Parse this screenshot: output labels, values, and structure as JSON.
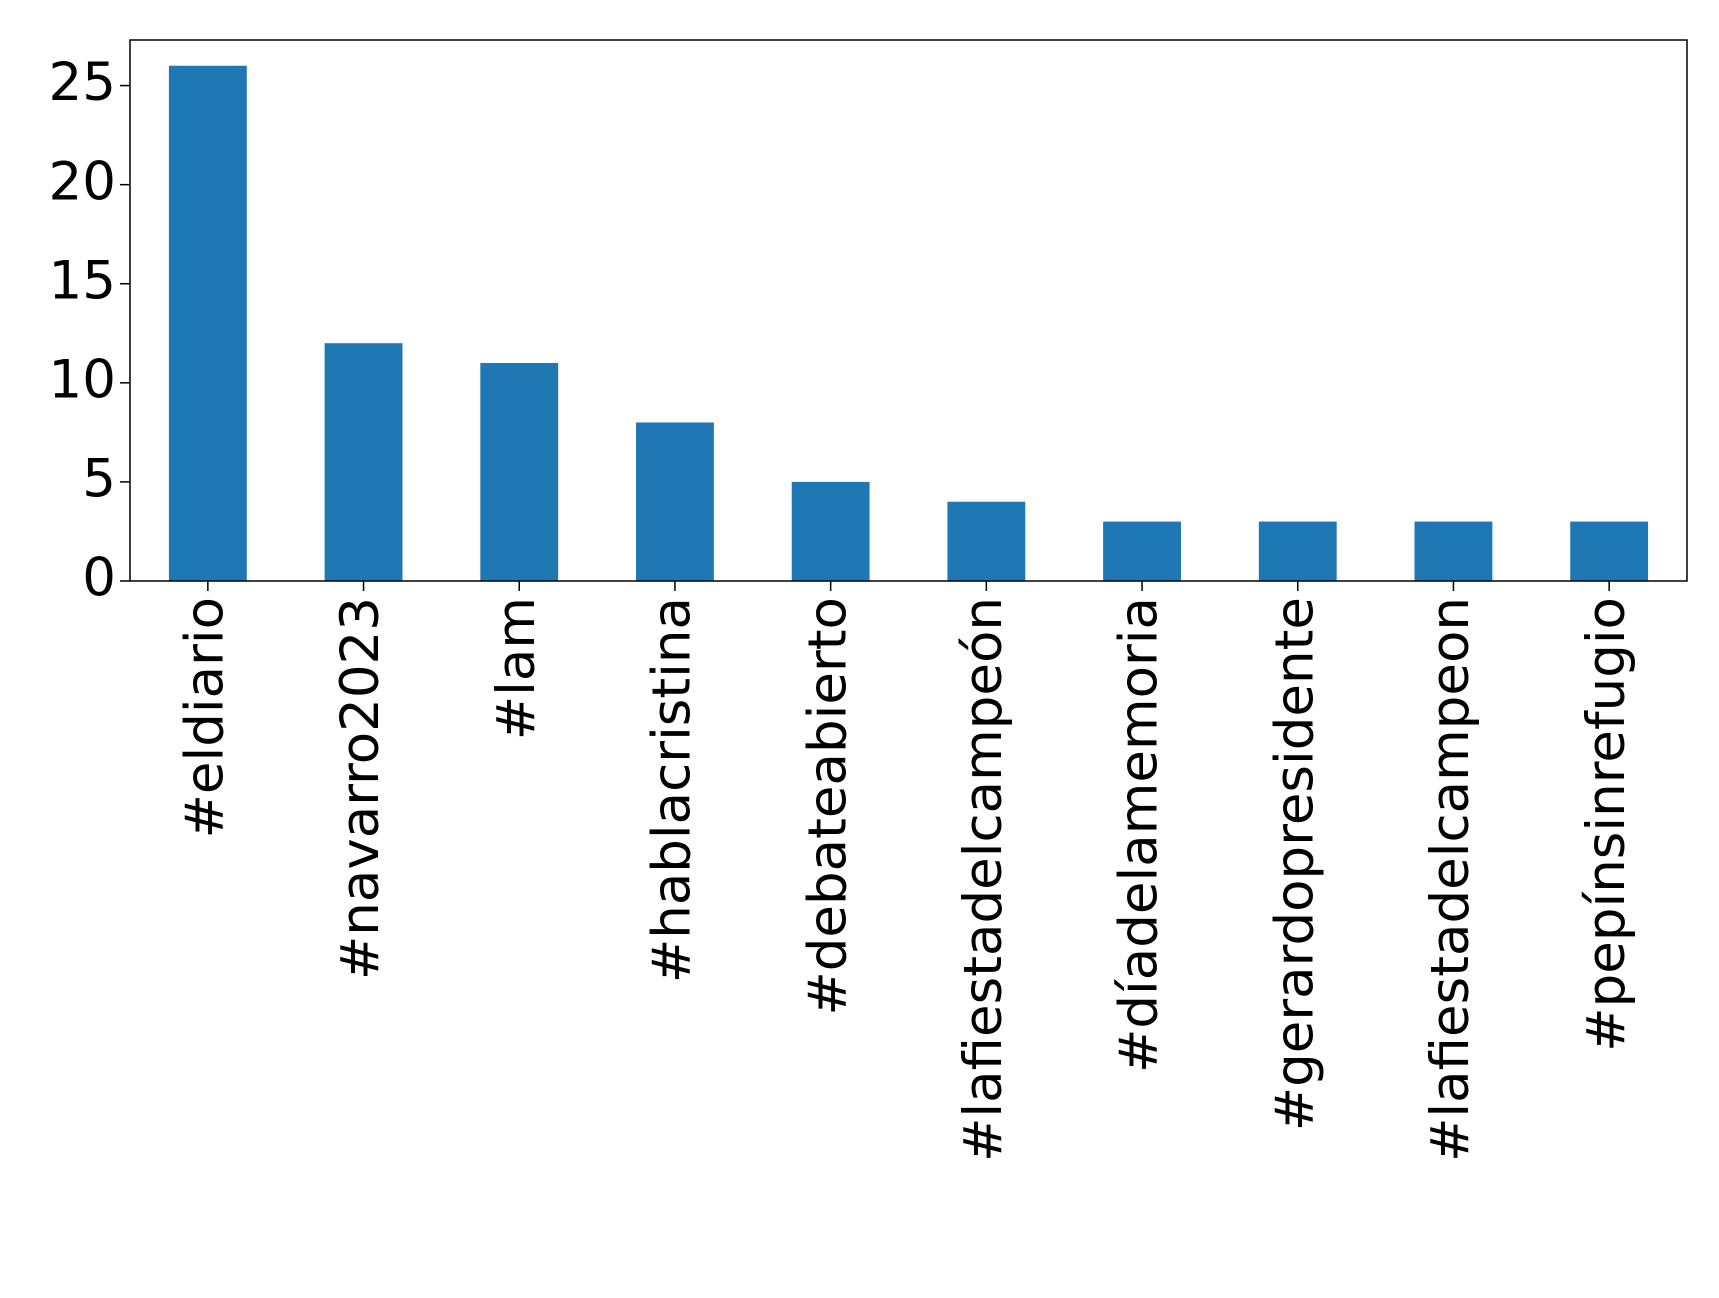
{
  "chart_data": {
    "type": "bar",
    "categories": [
      "#eldiario",
      "#navarro2023",
      "#lam",
      "#hablacristina",
      "#debateabierto",
      "#lafiestadelcampeón",
      "#díadelamemoria",
      "#gerardopresidente",
      "#lafiestadelcampeon",
      "#pepínsinrefugio"
    ],
    "values": [
      26,
      12,
      11,
      8,
      5,
      4,
      3,
      3,
      3,
      3
    ],
    "color": "#1f77b4",
    "ylim": [
      0,
      27.3
    ],
    "yticks": [
      0,
      5,
      10,
      15,
      20,
      25
    ],
    "grid": false
  }
}
